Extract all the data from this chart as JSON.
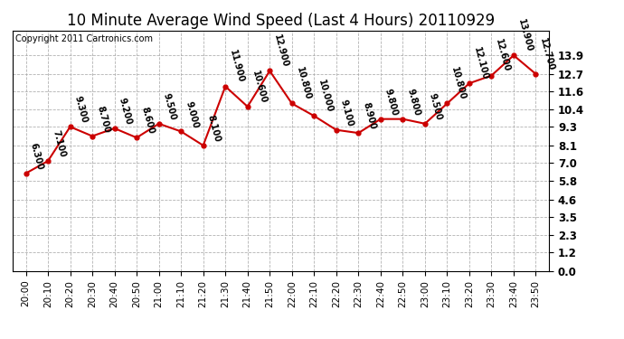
{
  "title": "10 Minute Average Wind Speed (Last 4 Hours) 20110929",
  "copyright": "Copyright 2011 Cartronics.com",
  "x_labels": [
    "20:00",
    "20:10",
    "20:20",
    "20:30",
    "20:40",
    "20:50",
    "21:00",
    "21:10",
    "21:20",
    "21:30",
    "21:40",
    "21:50",
    "22:00",
    "22:10",
    "22:20",
    "22:30",
    "22:40",
    "22:50",
    "23:00",
    "23:10",
    "23:20",
    "23:30",
    "23:40",
    "23:50"
  ],
  "y_values": [
    6.3,
    7.1,
    9.3,
    8.7,
    9.2,
    8.6,
    9.5,
    9.0,
    8.1,
    11.9,
    10.6,
    12.9,
    10.8,
    10.0,
    9.1,
    8.9,
    9.8,
    9.8,
    9.5,
    10.8,
    12.1,
    12.6,
    13.9,
    12.7
  ],
  "annot_labels": [
    "6.300",
    "7.100",
    "9.300",
    "8.700",
    "9.200",
    "8.600",
    "9.500",
    "9.000",
    "8.100",
    "11.900",
    "10.600",
    "12.900",
    "10.800",
    "10.000",
    "9.100",
    "8.900",
    "9.800",
    "9.800",
    "9.500",
    "10.800",
    "12.100",
    "12.600",
    "13.900",
    "12.700"
  ],
  "line_color": "#cc0000",
  "marker_color": "#cc0000",
  "bg_color": "#ffffff",
  "grid_color": "#aaaaaa",
  "y_ticks": [
    0.0,
    1.2,
    2.3,
    3.5,
    4.6,
    5.8,
    7.0,
    8.1,
    9.3,
    10.4,
    11.6,
    12.7,
    13.9
  ],
  "ylim": [
    0.0,
    15.5
  ],
  "title_fontsize": 12,
  "annot_fontsize": 7.0,
  "xlabel_fontsize": 7.5,
  "ylabel_fontsize": 8.5,
  "copyright_fontsize": 7.0
}
